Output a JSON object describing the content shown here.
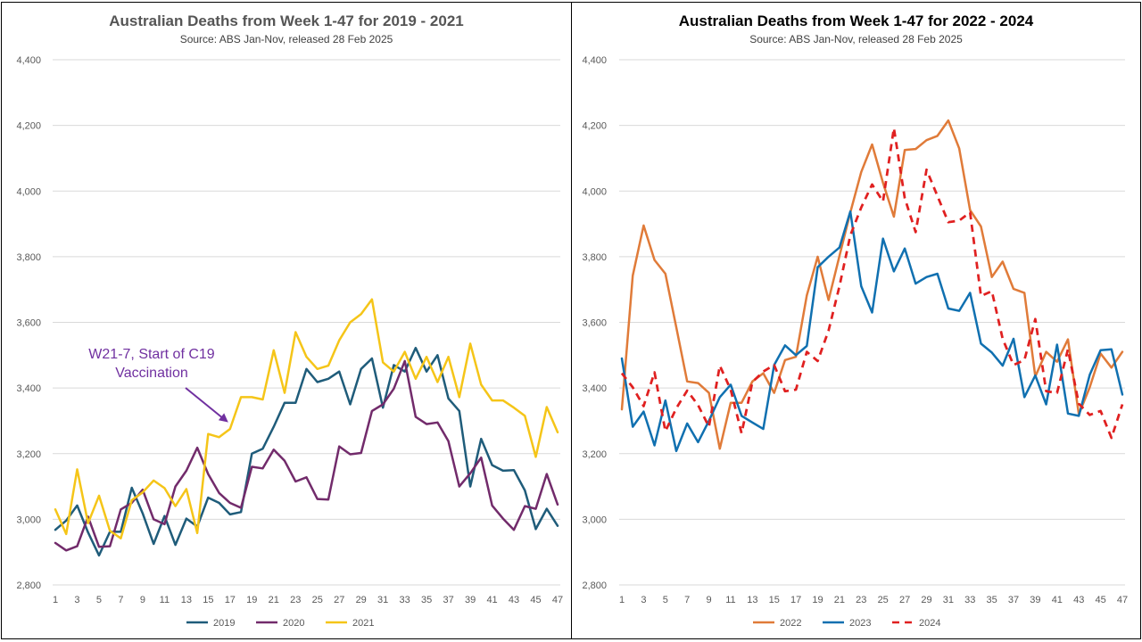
{
  "chart_data": [
    {
      "type": "line",
      "title": "Australian Deaths from Week 1-47 for 2019 - 2021",
      "subtitle": "Source: ABS Jan-Nov, released 28 Feb 2025",
      "ylim": [
        2800,
        4400
      ],
      "yticks": [
        2800,
        3000,
        3200,
        3400,
        3600,
        3800,
        4000,
        4200,
        4400
      ],
      "ytick_labels": [
        "2,800",
        "3,000",
        "3,200",
        "3,400",
        "3,600",
        "3,800",
        "4,000",
        "4,200",
        "4,400"
      ],
      "xlim": [
        1,
        47
      ],
      "xticks": [
        1,
        3,
        5,
        7,
        9,
        11,
        13,
        15,
        17,
        19,
        21,
        23,
        25,
        27,
        29,
        31,
        33,
        35,
        37,
        39,
        41,
        43,
        45,
        47
      ],
      "grid": true,
      "legend_position": "bottom",
      "annotation": {
        "lines": [
          "W21-7, Start of C19",
          "Vaccination"
        ],
        "color": "#7030A0",
        "points_to_week": 17
      },
      "series": [
        {
          "name": "2019",
          "color": "#1F5C7A",
          "dashed": false,
          "values": [
            2968,
            2996,
            3042,
            2960,
            2890,
            2962,
            2962,
            3096,
            3018,
            2925,
            3010,
            2922,
            3002,
            2978,
            3066,
            3050,
            3015,
            3022,
            3200,
            3215,
            3282,
            3355,
            3355,
            3458,
            3418,
            3428,
            3450,
            3350,
            3458,
            3490,
            3340,
            3470,
            3450,
            3522,
            3450,
            3500,
            3368,
            3330,
            3100,
            3245,
            3165,
            3148,
            3150,
            3088,
            2970,
            3032,
            2980
          ]
        },
        {
          "name": "2020",
          "color": "#722B6B",
          "dashed": false,
          "values": [
            2928,
            2905,
            2918,
            3008,
            2916,
            2918,
            3030,
            3050,
            3090,
            3000,
            2985,
            3100,
            3148,
            3218,
            3138,
            3080,
            3050,
            3035,
            3160,
            3155,
            3212,
            3178,
            3115,
            3128,
            3062,
            3060,
            3222,
            3198,
            3202,
            3330,
            3350,
            3398,
            3482,
            3312,
            3290,
            3295,
            3238,
            3100,
            3140,
            3188,
            3042,
            3002,
            2968,
            3040,
            3032,
            3138,
            3045
          ]
        },
        {
          "name": "2021",
          "color": "#F5C518",
          "dashed": false,
          "values": [
            3030,
            2955,
            3152,
            2988,
            3072,
            2965,
            2942,
            3058,
            3082,
            3118,
            3095,
            3040,
            3092,
            2958,
            3260,
            3250,
            3275,
            3372,
            3372,
            3365,
            3515,
            3385,
            3570,
            3495,
            3458,
            3468,
            3545,
            3600,
            3625,
            3670,
            3478,
            3450,
            3510,
            3428,
            3495,
            3418,
            3495,
            3372,
            3535,
            3410,
            3362,
            3362,
            3340,
            3315,
            3190,
            3342,
            3265
          ]
        }
      ]
    },
    {
      "type": "line",
      "title": "Australian Deaths from Week 1-47 for 2022 - 2024",
      "subtitle": "Source: ABS Jan-Nov, released 28 Feb  2025",
      "ylim": [
        2800,
        4400
      ],
      "yticks": [
        2800,
        3000,
        3200,
        3400,
        3600,
        3800,
        4000,
        4200,
        4400
      ],
      "ytick_labels": [
        "2,800",
        "3,000",
        "3,200",
        "3,400",
        "3,600",
        "3,800",
        "4,000",
        "4,200",
        "4,400"
      ],
      "xlim": [
        1,
        47
      ],
      "xticks": [
        1,
        3,
        5,
        7,
        9,
        11,
        13,
        15,
        17,
        19,
        21,
        23,
        25,
        27,
        29,
        31,
        33,
        35,
        37,
        39,
        41,
        43,
        45,
        47
      ],
      "grid": true,
      "legend_position": "bottom",
      "series": [
        {
          "name": "2022",
          "color": "#E07B39",
          "dashed": false,
          "values": [
            3335,
            3742,
            3895,
            3790,
            3748,
            3585,
            3420,
            3415,
            3385,
            3215,
            3355,
            3355,
            3420,
            3445,
            3385,
            3485,
            3495,
            3682,
            3800,
            3668,
            3802,
            3935,
            4058,
            4142,
            4025,
            3922,
            4125,
            4128,
            4155,
            4168,
            4215,
            4130,
            3942,
            3892,
            3738,
            3785,
            3702,
            3690,
            3435,
            3510,
            3480,
            3548,
            3320,
            3402,
            3505,
            3462,
            3510
          ]
        },
        {
          "name": "2023",
          "color": "#1070B0",
          "dashed": false,
          "values": [
            3490,
            3282,
            3328,
            3225,
            3362,
            3208,
            3292,
            3235,
            3300,
            3372,
            3410,
            3315,
            3295,
            3275,
            3470,
            3530,
            3500,
            3528,
            3768,
            3800,
            3828,
            3938,
            3710,
            3630,
            3855,
            3755,
            3825,
            3718,
            3738,
            3748,
            3642,
            3635,
            3690,
            3535,
            3508,
            3468,
            3550,
            3372,
            3438,
            3350,
            3532,
            3322,
            3315,
            3440,
            3515,
            3518,
            3380
          ]
        },
        {
          "name": "2024",
          "color": "#E02020",
          "dashed": true,
          "values": [
            3445,
            3402,
            3345,
            3448,
            3268,
            3338,
            3392,
            3348,
            3282,
            3468,
            3395,
            3262,
            3418,
            3450,
            3470,
            3390,
            3395,
            3510,
            3482,
            3575,
            3710,
            3865,
            3950,
            4020,
            3968,
            4192,
            3978,
            3875,
            4065,
            3985,
            3905,
            3910,
            3935,
            3680,
            3695,
            3550,
            3470,
            3485,
            3610,
            3390,
            3385,
            3518,
            3352,
            3318,
            3330,
            3248,
            3350
          ]
        }
      ]
    }
  ]
}
